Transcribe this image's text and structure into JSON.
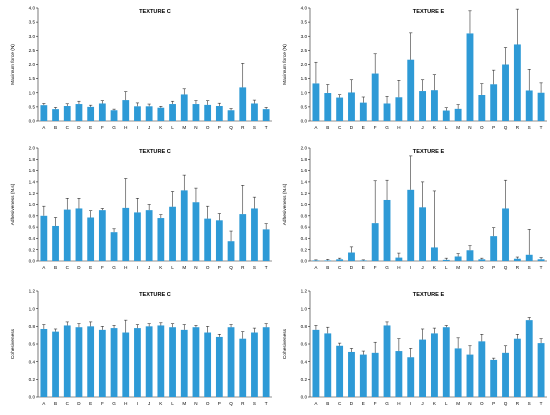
{
  "chart_data": [
    {
      "type": "bar",
      "title": "TEXTURE C",
      "ylabel": "Maximum force (N)",
      "ylim": [
        0,
        4.0
      ],
      "yticks": [
        0.0,
        0.5,
        1.0,
        1.5,
        2.0,
        2.5,
        3.0,
        3.5,
        4.0
      ],
      "ytick_labels": [
        "0.0",
        "0.5",
        "1.0",
        "1.5",
        "2.0",
        "2.5",
        "3.0",
        "3.5",
        "4.0"
      ],
      "categories": [
        "A",
        "B",
        "C",
        "D",
        "E",
        "F",
        "G",
        "H",
        "I",
        "J",
        "K",
        "L",
        "M",
        "N",
        "O",
        "P",
        "Q",
        "R",
        "S",
        "T"
      ],
      "values": [
        0.56,
        0.42,
        0.53,
        0.6,
        0.5,
        0.62,
        0.38,
        0.74,
        0.52,
        0.52,
        0.47,
        0.6,
        0.94,
        0.6,
        0.57,
        0.53,
        0.38,
        1.19,
        0.62,
        0.42
      ],
      "errors": [
        0.06,
        0.06,
        0.08,
        0.1,
        0.06,
        0.1,
        0.04,
        0.3,
        0.12,
        0.08,
        0.05,
        0.1,
        0.2,
        0.12,
        0.15,
        0.1,
        0.06,
        0.85,
        0.12,
        0.06
      ],
      "color": "#2e9ad6"
    },
    {
      "type": "bar",
      "title": "TEXTURE E",
      "ylabel": "Maximum force (N)",
      "ylim": [
        0,
        4.0
      ],
      "yticks": [
        0.0,
        0.5,
        1.0,
        1.5,
        2.0,
        2.5,
        3.0,
        3.5,
        4.0
      ],
      "ytick_labels": [
        "0.0",
        "0.5",
        "1.0",
        "1.5",
        "2.0",
        "2.5",
        "3.0",
        "3.5",
        "4.0"
      ],
      "categories": [
        "A",
        "B",
        "C",
        "D",
        "E",
        "F",
        "G",
        "H",
        "I",
        "J",
        "K",
        "L",
        "M",
        "N",
        "O",
        "P",
        "Q",
        "R",
        "S",
        "T"
      ],
      "values": [
        1.33,
        0.99,
        0.83,
        1.01,
        0.65,
        1.68,
        0.62,
        0.84,
        2.17,
        1.06,
        1.09,
        0.37,
        0.43,
        3.1,
        0.92,
        1.3,
        2.0,
        2.71,
        1.08,
        1.0
      ],
      "errors": [
        0.75,
        0.3,
        0.1,
        0.45,
        0.2,
        0.7,
        0.25,
        0.6,
        0.95,
        0.4,
        0.55,
        0.1,
        0.15,
        0.8,
        0.4,
        0.5,
        0.6,
        1.25,
        0.75,
        0.35
      ],
      "color": "#2e9ad6"
    },
    {
      "type": "bar",
      "title": "TEXTURE C",
      "ylabel": "Adhesiveness (N.s)",
      "ylim": [
        0,
        2.0
      ],
      "yticks": [
        0.0,
        0.2,
        0.4,
        0.6,
        0.8,
        1.0,
        1.2,
        1.4,
        1.6,
        1.8,
        2.0
      ],
      "ytick_labels": [
        "0.0",
        "0.2",
        "0.4",
        "0.6",
        "0.8",
        "1.0",
        "1.2",
        "1.4",
        "1.6",
        "1.8",
        "2.0"
      ],
      "categories": [
        "A",
        "B",
        "C",
        "D",
        "E",
        "F",
        "G",
        "H",
        "I",
        "J",
        "K",
        "L",
        "M",
        "N",
        "O",
        "P",
        "Q",
        "R",
        "S",
        "T"
      ],
      "values": [
        0.8,
        0.62,
        0.91,
        0.93,
        0.77,
        0.9,
        0.51,
        0.94,
        0.86,
        0.9,
        0.76,
        0.96,
        1.25,
        1.04,
        0.75,
        0.72,
        0.35,
        0.83,
        0.93,
        0.56
      ],
      "errors": [
        0.17,
        0.15,
        0.2,
        0.18,
        0.12,
        0.03,
        0.06,
        0.52,
        0.25,
        0.1,
        0.06,
        0.27,
        0.27,
        0.25,
        0.22,
        0.12,
        0.18,
        0.51,
        0.2,
        0.1
      ],
      "color": "#2e9ad6"
    },
    {
      "type": "bar",
      "title": "TEXTURE E",
      "ylabel": "Adhesiveness (N.s)",
      "ylim": [
        0,
        2.0
      ],
      "yticks": [
        0.0,
        0.2,
        0.4,
        0.6,
        0.8,
        1.0,
        1.2,
        1.4,
        1.6,
        1.8,
        2.0
      ],
      "ytick_labels": [
        "0.0",
        "0.2",
        "0.4",
        "0.6",
        "0.8",
        "1.0",
        "1.2",
        "1.4",
        "1.6",
        "1.8",
        "2.0"
      ],
      "categories": [
        "A",
        "B",
        "C",
        "D",
        "E",
        "F",
        "G",
        "H",
        "I",
        "J",
        "K",
        "L",
        "M",
        "N",
        "O",
        "P",
        "Q",
        "R",
        "S",
        "T"
      ],
      "values": [
        0.01,
        0.01,
        0.03,
        0.15,
        0.01,
        0.67,
        1.08,
        0.06,
        1.26,
        0.95,
        0.24,
        0.02,
        0.08,
        0.19,
        0.03,
        0.44,
        0.93,
        0.04,
        0.11,
        0.03
      ],
      "errors": [
        0.01,
        0.02,
        0.02,
        0.1,
        0.01,
        0.75,
        0.35,
        0.08,
        0.6,
        0.45,
        1.0,
        0.03,
        0.05,
        0.08,
        0.02,
        0.15,
        0.5,
        0.03,
        0.45,
        0.03
      ],
      "color": "#2e9ad6"
    },
    {
      "type": "bar",
      "title": "TEXTURE C",
      "ylabel": "Cohesiveness",
      "ylim": [
        0,
        1.2
      ],
      "yticks": [
        0.0,
        0.2,
        0.4,
        0.6,
        0.8,
        1.0,
        1.2
      ],
      "ytick_labels": [
        "0.0",
        "0.2",
        "0.4",
        "0.6",
        "0.8",
        "1.0",
        "1.2"
      ],
      "categories": [
        "A",
        "B",
        "C",
        "D",
        "E",
        "F",
        "G",
        "H",
        "I",
        "J",
        "K",
        "L",
        "M",
        "N",
        "O",
        "P",
        "Q",
        "R",
        "S",
        "T"
      ],
      "values": [
        0.77,
        0.74,
        0.81,
        0.79,
        0.8,
        0.76,
        0.78,
        0.73,
        0.78,
        0.8,
        0.81,
        0.79,
        0.76,
        0.79,
        0.73,
        0.68,
        0.79,
        0.66,
        0.73,
        0.79
      ],
      "errors": [
        0.05,
        0.03,
        0.04,
        0.04,
        0.05,
        0.04,
        0.03,
        0.14,
        0.04,
        0.03,
        0.03,
        0.04,
        0.06,
        0.02,
        0.07,
        0.03,
        0.03,
        0.08,
        0.05,
        0.04
      ],
      "color": "#2e9ad6"
    },
    {
      "type": "bar",
      "title": "TEXTURE E",
      "ylabel": "Cohesiveness",
      "ylim": [
        0,
        1.2
      ],
      "yticks": [
        0.0,
        0.2,
        0.4,
        0.6,
        0.8,
        1.0,
        1.2
      ],
      "ytick_labels": [
        "0.0",
        "0.2",
        "0.4",
        "0.6",
        "0.8",
        "1.0",
        "1.2"
      ],
      "categories": [
        "A",
        "B",
        "C",
        "D",
        "E",
        "F",
        "G",
        "H",
        "I",
        "J",
        "K",
        "L",
        "M",
        "N",
        "O",
        "P",
        "Q",
        "R",
        "S",
        "T"
      ],
      "values": [
        0.76,
        0.72,
        0.58,
        0.51,
        0.48,
        0.5,
        0.81,
        0.52,
        0.45,
        0.65,
        0.72,
        0.79,
        0.55,
        0.48,
        0.63,
        0.42,
        0.5,
        0.66,
        0.87,
        0.61
      ],
      "errors": [
        0.05,
        0.07,
        0.03,
        0.04,
        0.04,
        0.12,
        0.04,
        0.14,
        0.1,
        0.12,
        0.06,
        0.02,
        0.12,
        0.1,
        0.08,
        0.02,
        0.08,
        0.05,
        0.03,
        0.05
      ],
      "color": "#2e9ad6"
    }
  ]
}
